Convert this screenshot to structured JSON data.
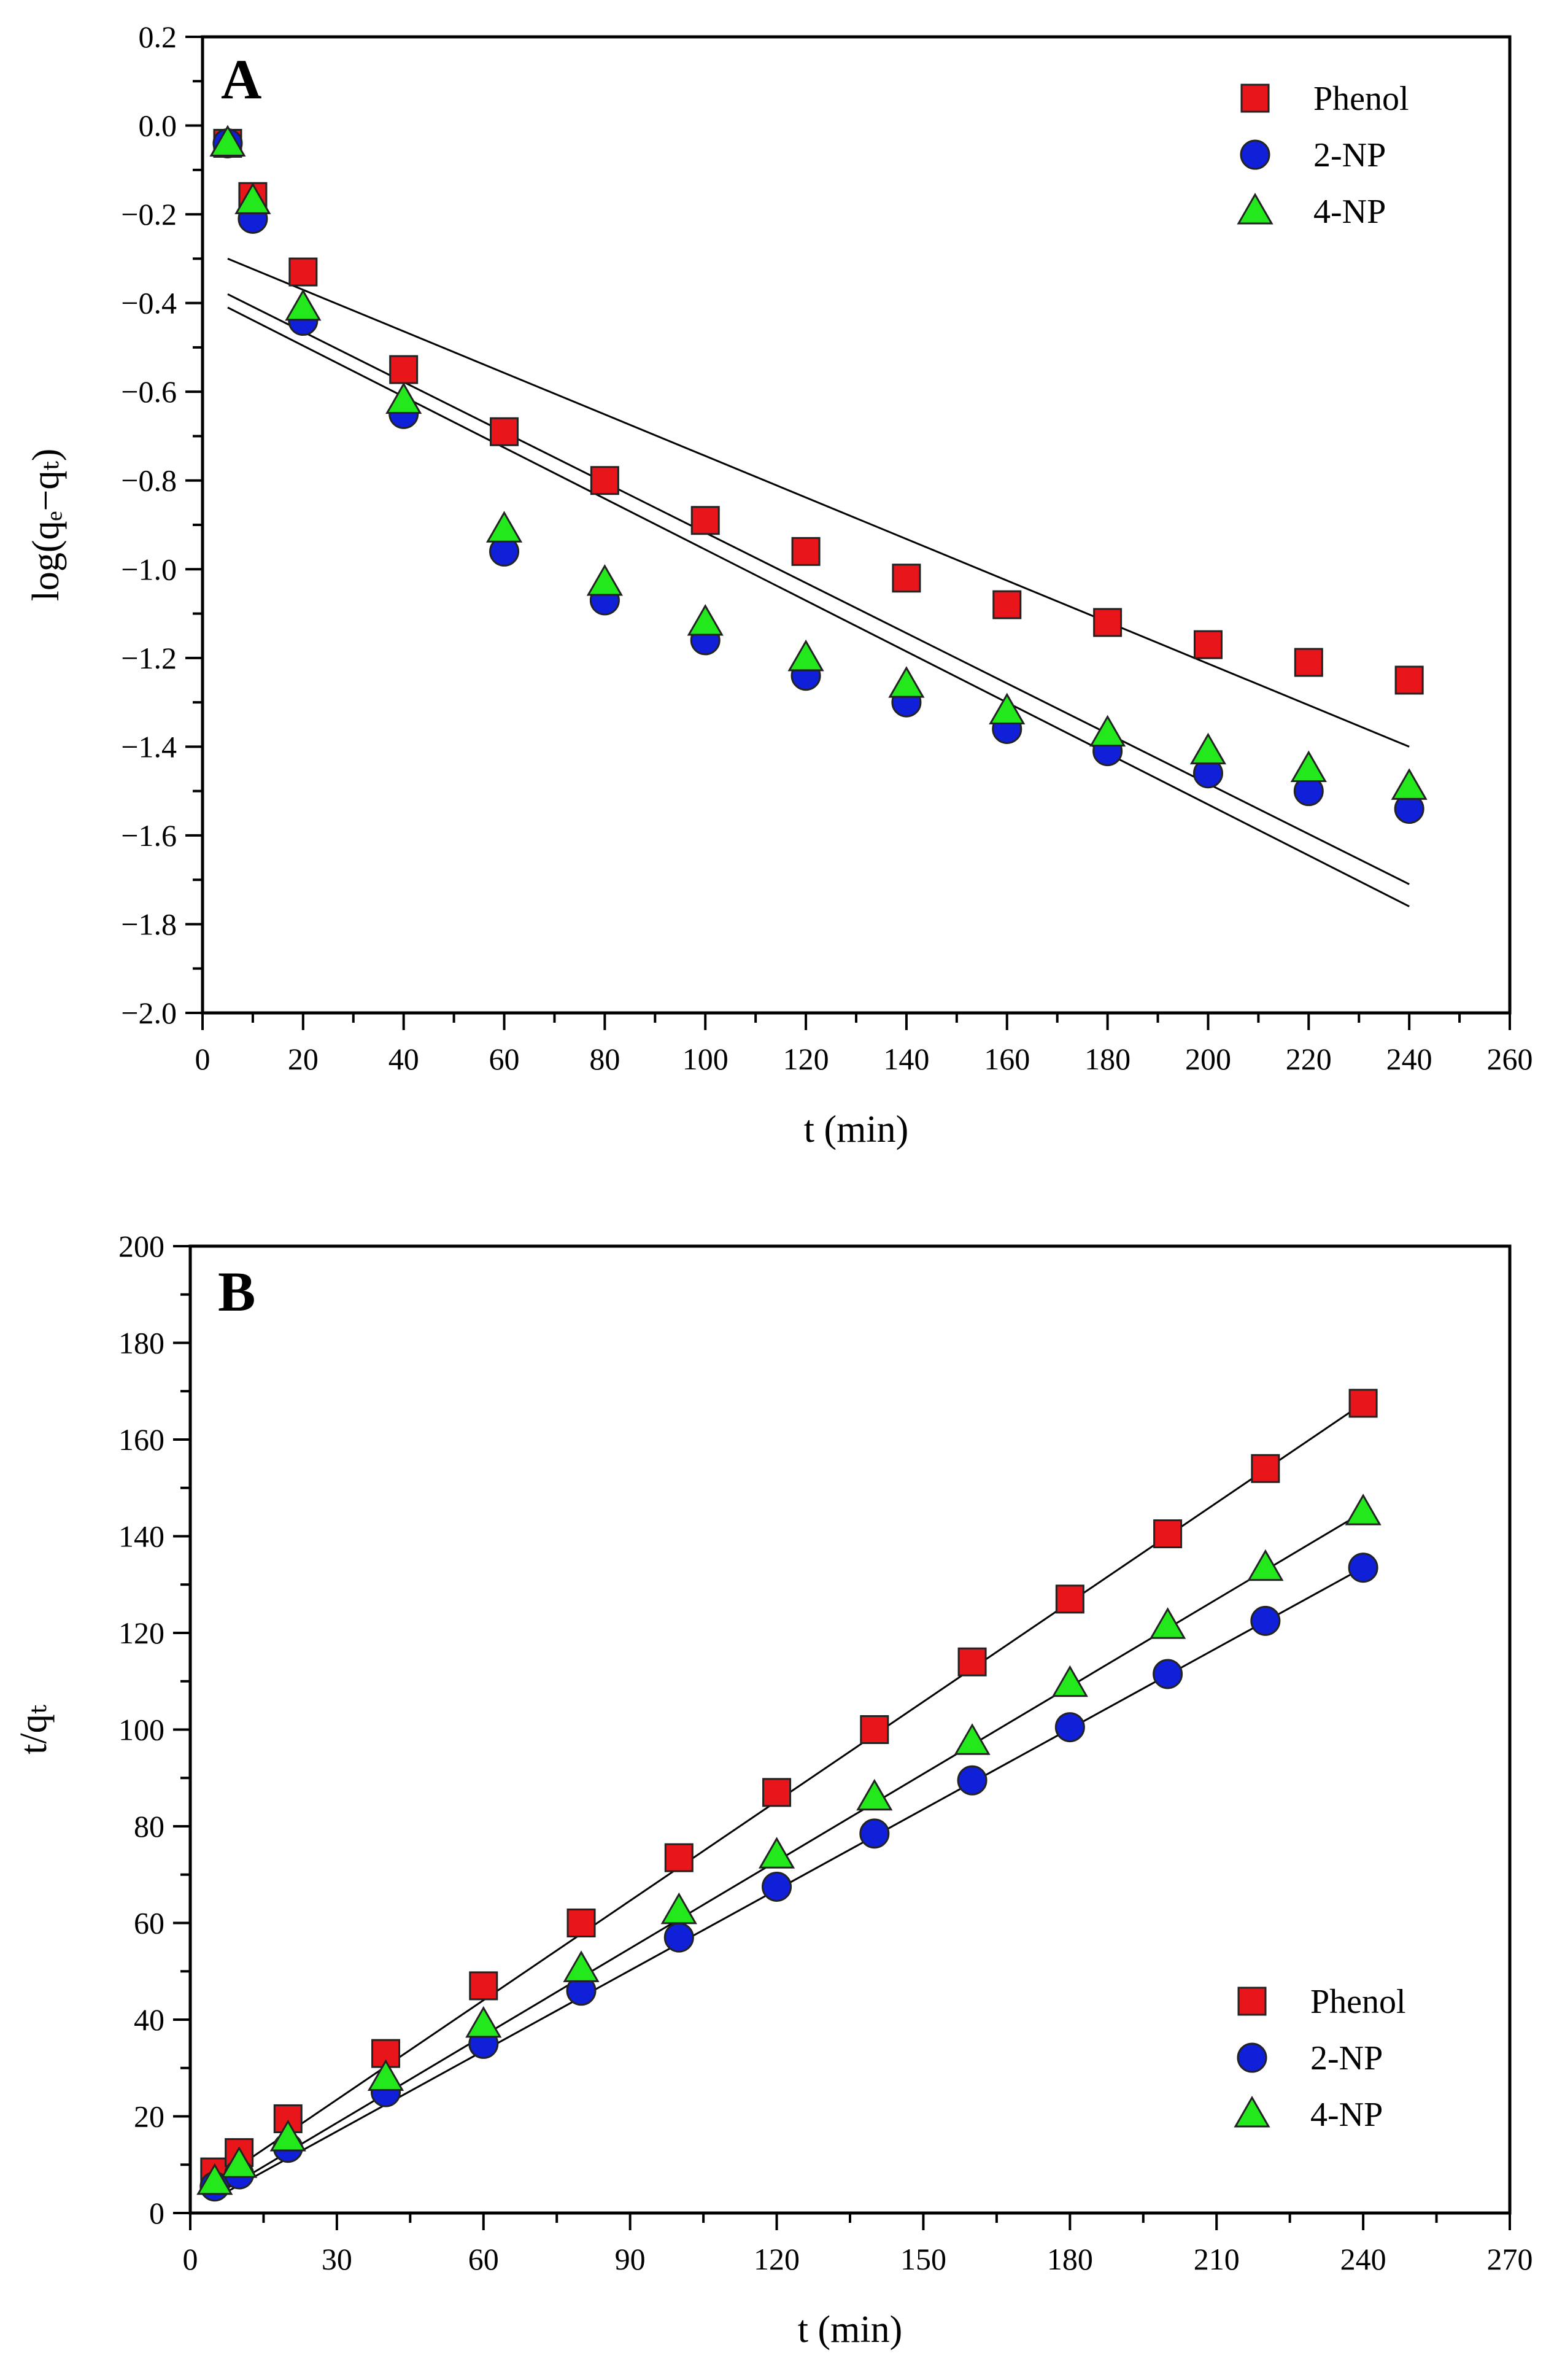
{
  "chart_data": [
    {
      "panel_label": "A",
      "type": "scatter",
      "title": "",
      "xlabel": "t (min)",
      "ylabel": "log(qₑ−qₜ)",
      "xlim": [
        0,
        260
      ],
      "ylim": [
        -2.0,
        0.2
      ],
      "x_ticks": [
        0,
        20,
        40,
        60,
        80,
        100,
        120,
        140,
        160,
        180,
        200,
        220,
        240,
        260
      ],
      "x_tick_labels": [
        "0",
        "20",
        "40",
        "60",
        "80",
        "100",
        "120",
        "140",
        "160",
        "180",
        "200",
        "220",
        "240",
        "260"
      ],
      "y_ticks": [
        -2.0,
        -1.8,
        -1.6,
        -1.4,
        -1.2,
        -1.0,
        -0.8,
        -0.6,
        -0.4,
        -0.2,
        0.0,
        0.2
      ],
      "y_tick_labels": [
        "−2.0",
        "−1.8",
        "−1.6",
        "−1.4",
        "−1.2",
        "−1.0",
        "−0.8",
        "−0.6",
        "−0.4",
        "−0.2",
        "0.0",
        "0.2"
      ],
      "legend_position": "top-right",
      "grid": false,
      "x": [
        5,
        10,
        20,
        40,
        60,
        80,
        100,
        120,
        140,
        160,
        180,
        200,
        220,
        240
      ],
      "series": [
        {
          "name": "Phenol",
          "marker": "square",
          "color": "#e8161b",
          "values": [
            -0.04,
            -0.16,
            -0.33,
            -0.55,
            -0.69,
            -0.8,
            -0.89,
            -0.96,
            -1.02,
            -1.08,
            -1.12,
            -1.17,
            -1.21,
            -1.25
          ],
          "fit_line": {
            "x": [
              5,
              240
            ],
            "y": [
              -0.3,
              -1.4
            ]
          }
        },
        {
          "name": "2-NP",
          "marker": "circle",
          "color": "#1020d8",
          "values": [
            -0.04,
            -0.21,
            -0.44,
            -0.65,
            -0.96,
            -1.07,
            -1.16,
            -1.24,
            -1.3,
            -1.36,
            -1.41,
            -1.46,
            -1.5,
            -1.54
          ],
          "fit_line": {
            "x": [
              5,
              240
            ],
            "y": [
              -0.41,
              -1.76
            ]
          }
        },
        {
          "name": "4-NP",
          "marker": "triangle",
          "color": "#22e81c",
          "values": [
            -0.04,
            -0.17,
            -0.41,
            -0.62,
            -0.91,
            -1.03,
            -1.12,
            -1.2,
            -1.26,
            -1.32,
            -1.37,
            -1.41,
            -1.45,
            -1.49
          ],
          "fit_line": {
            "x": [
              5,
              240
            ],
            "y": [
              -0.38,
              -1.71
            ]
          }
        }
      ]
    },
    {
      "panel_label": "B",
      "type": "scatter",
      "title": "",
      "xlabel": "t (min)",
      "ylabel": "t/qₜ",
      "xlim": [
        0,
        270
      ],
      "ylim": [
        0,
        200
      ],
      "x_ticks": [
        0,
        30,
        60,
        90,
        120,
        150,
        180,
        210,
        240,
        270
      ],
      "x_tick_labels": [
        "0",
        "30",
        "60",
        "90",
        "120",
        "150",
        "180",
        "210",
        "240",
        "270"
      ],
      "y_ticks": [
        0,
        20,
        40,
        60,
        80,
        100,
        120,
        140,
        160,
        180,
        200
      ],
      "y_tick_labels": [
        "0",
        "20",
        "40",
        "60",
        "80",
        "100",
        "120",
        "140",
        "160",
        "180",
        "200"
      ],
      "legend_position": "bottom-right",
      "grid": false,
      "x": [
        5,
        10,
        20,
        40,
        60,
        80,
        100,
        120,
        140,
        160,
        180,
        200,
        220,
        240
      ],
      "series": [
        {
          "name": "Phenol",
          "marker": "square",
          "color": "#e8161b",
          "values": [
            8.5,
            12.5,
            19.5,
            33,
            47,
            60,
            73.5,
            87,
            100,
            114,
            127,
            140.5,
            154,
            167.5
          ],
          "fit_line": {
            "x": [
              5,
              240
            ],
            "y": [
              6.3,
              167.5
            ]
          }
        },
        {
          "name": "2-NP",
          "marker": "circle",
          "color": "#1020d8",
          "values": [
            5.5,
            8,
            13.5,
            25,
            35,
            46,
            57,
            67.5,
            78.5,
            89.5,
            100.5,
            111.5,
            122.5,
            133.5
          ],
          "fit_line": {
            "x": [
              5,
              240
            ],
            "y": [
              3.0,
              133.5
            ]
          }
        },
        {
          "name": "4-NP",
          "marker": "triangle",
          "color": "#22e81c",
          "values": [
            6.5,
            10,
            15.5,
            28,
            39,
            50.5,
            62.5,
            74,
            86,
            97.5,
            109.5,
            121.5,
            133.5,
            145
          ],
          "fit_line": {
            "x": [
              5,
              240
            ],
            "y": [
              3.6,
              145
            ]
          }
        }
      ]
    }
  ]
}
